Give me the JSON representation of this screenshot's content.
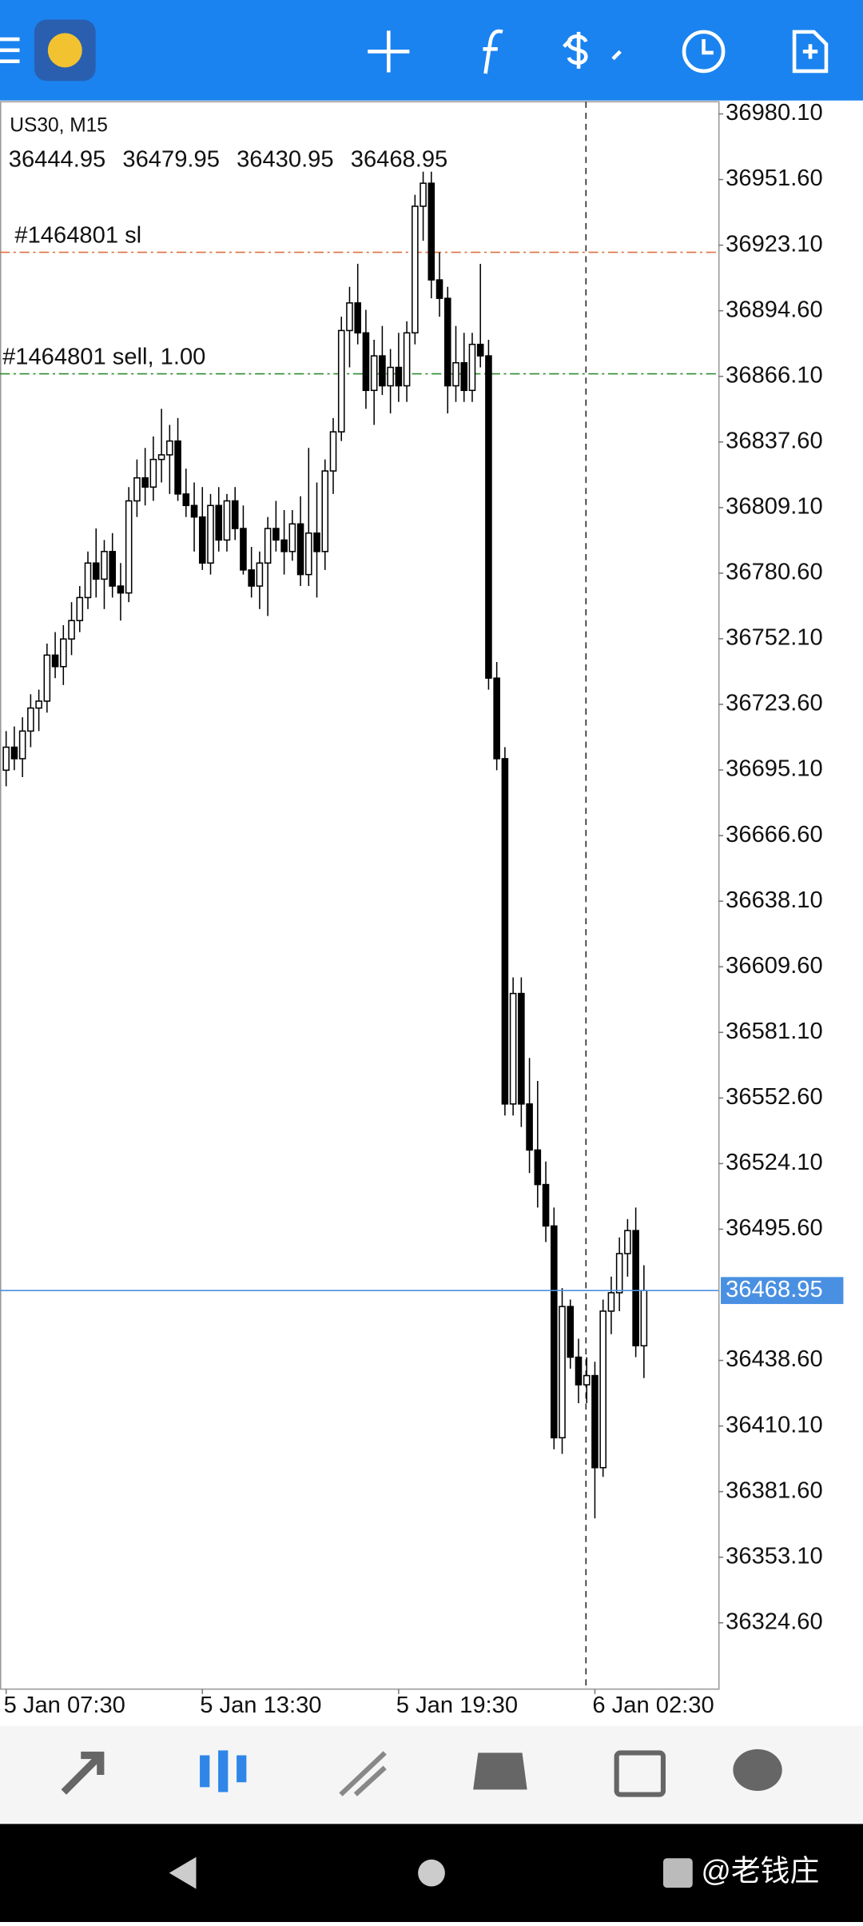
{
  "chart_data": {
    "type": "candlestick",
    "title": "US30, M15",
    "ohlc": [
      [
        36695,
        36712,
        36688,
        36705
      ],
      [
        36705,
        36714,
        36695,
        36700
      ],
      [
        36700,
        36718,
        36692,
        36712
      ],
      [
        36712,
        36728,
        36705,
        36722
      ],
      [
        36722,
        36730,
        36712,
        36725
      ],
      [
        36725,
        36750,
        36720,
        36745
      ],
      [
        36745,
        36755,
        36735,
        36740
      ],
      [
        36740,
        36758,
        36732,
        36752
      ],
      [
        36752,
        36768,
        36745,
        36760
      ],
      [
        36760,
        36775,
        36755,
        36770
      ],
      [
        36770,
        36790,
        36765,
        36785
      ],
      [
        36785,
        36800,
        36770,
        36778
      ],
      [
        36778,
        36795,
        36765,
        36790
      ],
      [
        36790,
        36798,
        36770,
        36775
      ],
      [
        36775,
        36785,
        36760,
        36772
      ],
      [
        36772,
        36818,
        36768,
        36812
      ],
      [
        36812,
        36830,
        36805,
        36822
      ],
      [
        36822,
        36835,
        36810,
        36818
      ],
      [
        36818,
        36840,
        36812,
        36830
      ],
      [
        36830,
        36852,
        36820,
        36832
      ],
      [
        36832,
        36845,
        36815,
        36838
      ],
      [
        36838,
        36848,
        36812,
        36815
      ],
      [
        36815,
        36826,
        36805,
        36810
      ],
      [
        36810,
        36820,
        36790,
        36805
      ],
      [
        36805,
        36818,
        36782,
        36785
      ],
      [
        36785,
        36815,
        36780,
        36810
      ],
      [
        36810,
        36818,
        36790,
        36795
      ],
      [
        36795,
        36815,
        36790,
        36812
      ],
      [
        36812,
        36818,
        36795,
        36800
      ],
      [
        36800,
        36810,
        36780,
        36782
      ],
      [
        36782,
        36792,
        36770,
        36775
      ],
      [
        36775,
        36790,
        36765,
        36785
      ],
      [
        36785,
        36805,
        36762,
        36800
      ],
      [
        36800,
        36812,
        36790,
        36795
      ],
      [
        36795,
        36808,
        36780,
        36790
      ],
      [
        36790,
        36808,
        36786,
        36802
      ],
      [
        36802,
        36814,
        36775,
        36780
      ],
      [
        36780,
        36835,
        36775,
        36798
      ],
      [
        36798,
        36820,
        36770,
        36790
      ],
      [
        36790,
        36830,
        36782,
        36825
      ],
      [
        36825,
        36848,
        36815,
        36842
      ],
      [
        36842,
        36892,
        36838,
        36886
      ],
      [
        36886,
        36905,
        36870,
        36898
      ],
      [
        36898,
        36915,
        36880,
        36885
      ],
      [
        36885,
        36895,
        36852,
        36860
      ],
      [
        36860,
        36882,
        36845,
        36875
      ],
      [
        36875,
        36888,
        36858,
        36862
      ],
      [
        36862,
        36878,
        36850,
        36870
      ],
      [
        36870,
        36885,
        36855,
        36862
      ],
      [
        36862,
        36890,
        36855,
        36885
      ],
      [
        36885,
        36945,
        36880,
        36940
      ],
      [
        36940,
        36955,
        36925,
        36950
      ],
      [
        36950,
        36955,
        36900,
        36908
      ],
      [
        36908,
        36920,
        36892,
        36900
      ],
      [
        36900,
        36905,
        36850,
        36862
      ],
      [
        36862,
        36888,
        36855,
        36872
      ],
      [
        36872,
        36885,
        36855,
        36860
      ],
      [
        36860,
        36885,
        36855,
        36880
      ],
      [
        36880,
        36915,
        36870,
        36875
      ],
      [
        36875,
        36882,
        36730,
        36735
      ],
      [
        36735,
        36742,
        36695,
        36700
      ],
      [
        36700,
        36705,
        36545,
        36550
      ],
      [
        36550,
        36605,
        36545,
        36598
      ],
      [
        36598,
        36605,
        36540,
        36550
      ],
      [
        36550,
        36570,
        36520,
        36530
      ],
      [
        36530,
        36560,
        36505,
        36515
      ],
      [
        36515,
        36525,
        36490,
        36497
      ],
      [
        36497,
        36505,
        36400,
        36405
      ],
      [
        36405,
        36470,
        36398,
        36462
      ],
      [
        36462,
        36465,
        36435,
        36440
      ],
      [
        36440,
        36448,
        36420,
        36428
      ],
      [
        36428,
        36440,
        36420,
        36432
      ],
      [
        36432,
        36438,
        36370,
        36392
      ],
      [
        36392,
        36465,
        36388,
        36460
      ],
      [
        36460,
        36475,
        36450,
        36468
      ],
      [
        36468,
        36492,
        36460,
        36485
      ],
      [
        36485,
        36500,
        36475,
        36495
      ],
      [
        36495,
        36505,
        36440,
        36445
      ],
      [
        36444.95,
        36479.95,
        36430.95,
        36468.95
      ]
    ],
    "up_color": "#ffffff",
    "down_color": "#000000",
    "xlim": [
      -0.75,
      87.1
    ],
    "xticks": [
      {
        "value": 0,
        "label": "5 Jan 07:30"
      },
      {
        "value": 24,
        "label": "5 Jan 13:30"
      },
      {
        "value": 48,
        "label": "5 Jan 19:30"
      },
      {
        "value": 72,
        "label": "6 Jan 02:30"
      }
    ],
    "ylim": [
      36295.8,
      36985.4
    ],
    "yticks": [
      {
        "value": 36980.1,
        "label": "36980.10"
      },
      {
        "value": 36951.6,
        "label": "36951.60"
      },
      {
        "value": 36923.1,
        "label": "36923.10"
      },
      {
        "value": 36894.6,
        "label": "36894.60"
      },
      {
        "value": 36866.1,
        "label": "36866.10"
      },
      {
        "value": 36837.6,
        "label": "36837.60"
      },
      {
        "value": 36809.1,
        "label": "36809.10"
      },
      {
        "value": 36780.6,
        "label": "36780.60"
      },
      {
        "value": 36752.1,
        "label": "36752.10"
      },
      {
        "value": 36723.6,
        "label": "36723.60"
      },
      {
        "value": 36695.1,
        "label": "36695.10"
      },
      {
        "value": 36666.6,
        "label": "36666.60"
      },
      {
        "value": 36638.1,
        "label": "36638.10"
      },
      {
        "value": 36609.6,
        "label": "36609.60"
      },
      {
        "value": 36581.1,
        "label": "36581.10"
      },
      {
        "value": 36552.6,
        "label": "36552.60"
      },
      {
        "value": 36524.1,
        "label": "36524.10"
      },
      {
        "value": 36495.6,
        "label": "36495.60"
      },
      {
        "value": 36438.6,
        "label": "36438.60"
      },
      {
        "value": 36410.1,
        "label": "36410.10"
      },
      {
        "value": 36381.6,
        "label": "36381.60"
      },
      {
        "value": 36353.1,
        "label": "36353.10"
      },
      {
        "value": 36324.6,
        "label": "36324.60"
      }
    ],
    "levels": [
      {
        "label": "#1464801 sl",
        "value": 36920,
        "color": "#e07040"
      },
      {
        "label": "#1464801 sell, 1.00",
        "value": 36867.2,
        "color": "#2e8b2e"
      }
    ],
    "last_price_color": "#4a90e2"
  },
  "watermark": "@老钱庄"
}
